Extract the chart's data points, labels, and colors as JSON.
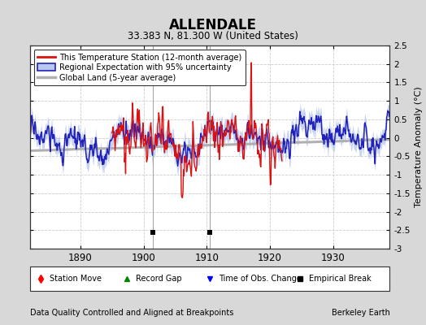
{
  "title": "ALLENDALE",
  "subtitle": "33.383 N, 81.300 W (United States)",
  "xlabel_left": "Data Quality Controlled and Aligned at Breakpoints",
  "xlabel_right": "Berkeley Earth",
  "ylabel": "Temperature Anomaly (°C)",
  "xlim": [
    1882,
    1939
  ],
  "ylim": [
    -3,
    2.5
  ],
  "yticks": [
    -3,
    -2.5,
    -2,
    -1.5,
    -1,
    -0.5,
    0,
    0.5,
    1,
    1.5,
    2,
    2.5
  ],
  "xticks": [
    1890,
    1900,
    1910,
    1920,
    1930
  ],
  "fig_bg_color": "#d8d8d8",
  "plot_bg_color": "#ffffff",
  "grid_color": "#cccccc",
  "empirical_breaks": [
    1901.5,
    1910.5
  ],
  "station_start_year": 1895,
  "station_end_year": 1922,
  "seed": 17
}
